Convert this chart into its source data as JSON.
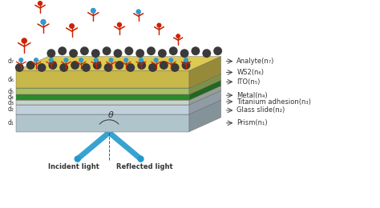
{
  "background_color": "#ffffff",
  "layer_colors": {
    "WS2": "#c8b84a",
    "ITO": "#a8c060",
    "Metal": "#2a8a2a",
    "Titanium": "#c8d4c8",
    "Glass": "#c0d0dc",
    "Prism": "#b0c4cc"
  },
  "layer_labels": [
    "Analyte(n₇)",
    "WS2(n₆)",
    "ITO(n₅)",
    "Metal(n₄)",
    "Titanium adhesion(n₃)",
    "Glass slide(n₂)",
    "Prism(n₁)"
  ],
  "left_labels": [
    "d₇",
    "d₆",
    "d₅",
    "d₄",
    "d₃",
    "d₂",
    "d₁"
  ],
  "incident_label": "Incident light",
  "reflected_label": "Reflected light",
  "theta_label": "θ",
  "analyte_color": "#cc2200",
  "ball_color": "#3399cc",
  "dark_ball_color": "#3a3a3a",
  "light_beam_color": "#2299cc",
  "font_size": 6.0,
  "small_font_size": 5.5
}
